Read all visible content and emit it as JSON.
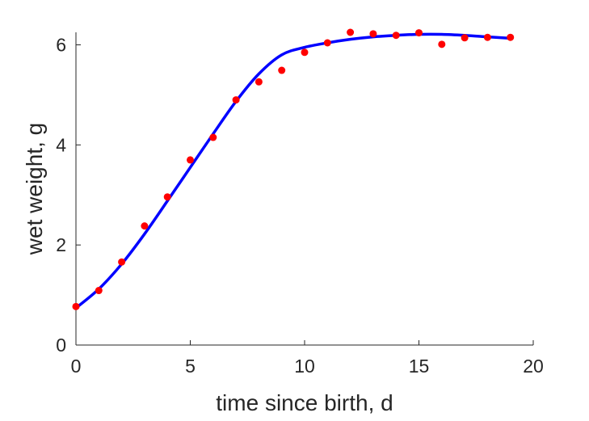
{
  "chart_data": {
    "type": "scatter",
    "title": "",
    "xlabel": "time since birth, d",
    "ylabel": "wet weight, g",
    "xlim": [
      0,
      20
    ],
    "ylim": [
      0,
      6.25
    ],
    "xticks": [
      0,
      5,
      10,
      15,
      20
    ],
    "yticks": [
      0,
      2,
      4,
      6
    ],
    "grid": false,
    "legend": "none",
    "series": [
      {
        "kind": "scatter",
        "color": "#ff0000",
        "x": [
          0,
          1,
          2,
          3,
          4,
          5,
          6,
          7,
          8,
          9,
          10,
          11,
          12,
          13,
          14,
          15,
          16,
          17,
          18,
          19
        ],
        "y": [
          0.77,
          1.09,
          1.66,
          2.38,
          2.96,
          3.7,
          4.15,
          4.9,
          5.26,
          5.49,
          5.85,
          6.04,
          6.25,
          6.22,
          6.19,
          6.24,
          6.01,
          6.14,
          6.15,
          6.15
        ]
      },
      {
        "kind": "line",
        "color": "#0000ff",
        "x": [
          0,
          1,
          2,
          3,
          4,
          5,
          6,
          7,
          8,
          9,
          10,
          11,
          12,
          13,
          14,
          15,
          16,
          17,
          18,
          19
        ],
        "y": [
          0.74,
          1.12,
          1.62,
          2.22,
          2.88,
          3.55,
          4.22,
          4.87,
          5.42,
          5.8,
          5.95,
          6.04,
          6.11,
          6.16,
          6.19,
          6.21,
          6.21,
          6.19,
          6.16,
          6.13
        ]
      }
    ]
  }
}
